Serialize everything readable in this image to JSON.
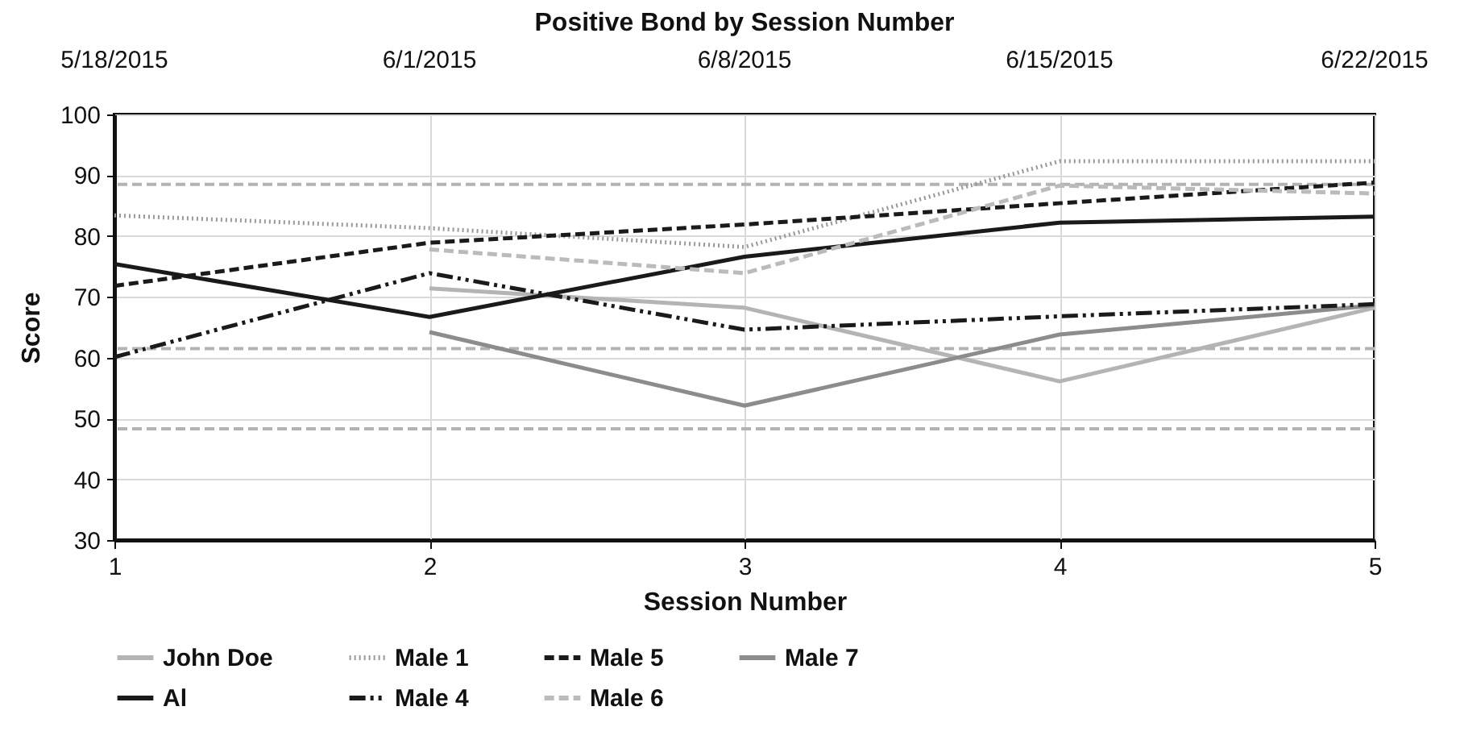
{
  "chart_data": {
    "type": "line",
    "title": "Positive Bond by Session Number",
    "xlabel": "Session Number",
    "ylabel": "Score",
    "x": [
      1,
      2,
      3,
      4,
      5
    ],
    "xlim": [
      1,
      5
    ],
    "xticks": [
      1,
      2,
      3,
      4,
      5
    ],
    "annotations": [
      "5/18/2015",
      "6/1/2015",
      "6/8/2015",
      "6/15/2015",
      "6/22/2015"
    ],
    "ylim": [
      30,
      100
    ],
    "yticks": [
      30,
      40,
      50,
      60,
      70,
      80,
      90,
      100
    ],
    "grid": true,
    "legend": "bottom",
    "ref_lines": [
      {
        "axis": "y",
        "value": 88.5,
        "color": "#b3b3b3",
        "line_style": "dashed"
      },
      {
        "axis": "y",
        "value": 61.5,
        "color": "#b3b3b3",
        "line_style": "dashed"
      },
      {
        "axis": "y",
        "value": 48.3,
        "color": "#b3b3b3",
        "line_style": "dashed"
      }
    ],
    "series": [
      {
        "name": "John Doe",
        "color": "#b4b4b4",
        "line_style": "solid",
        "values": [
          null,
          71.4,
          68.2,
          56.1,
          68.2
        ]
      },
      {
        "name": "Male 1",
        "color": "#999999",
        "line_style": "dotted",
        "values": [
          83.4,
          81.3,
          78.2,
          92.3,
          92.3
        ]
      },
      {
        "name": "Male 5",
        "color": "#1a1a1a",
        "line_style": "dashed",
        "values": [
          71.8,
          78.9,
          81.9,
          85.4,
          88.8
        ]
      },
      {
        "name": "Male 7",
        "color": "#8c8c8c",
        "line_style": "solid",
        "values": [
          null,
          64.2,
          52.1,
          63.8,
          68.6
        ]
      },
      {
        "name": "Al",
        "color": "#1a1a1a",
        "line_style": "solid",
        "values": [
          75.4,
          66.7,
          76.6,
          82.2,
          83.2
        ]
      },
      {
        "name": "Male 4",
        "color": "#1a1a1a",
        "line_style": "dashdot",
        "values": [
          60.1,
          73.9,
          64.6,
          66.8,
          68.8
        ]
      },
      {
        "name": "Male 6",
        "color": "#bbbbbb",
        "line_style": "dashed",
        "values": [
          null,
          77.8,
          73.9,
          88.3,
          87.0
        ]
      }
    ]
  }
}
